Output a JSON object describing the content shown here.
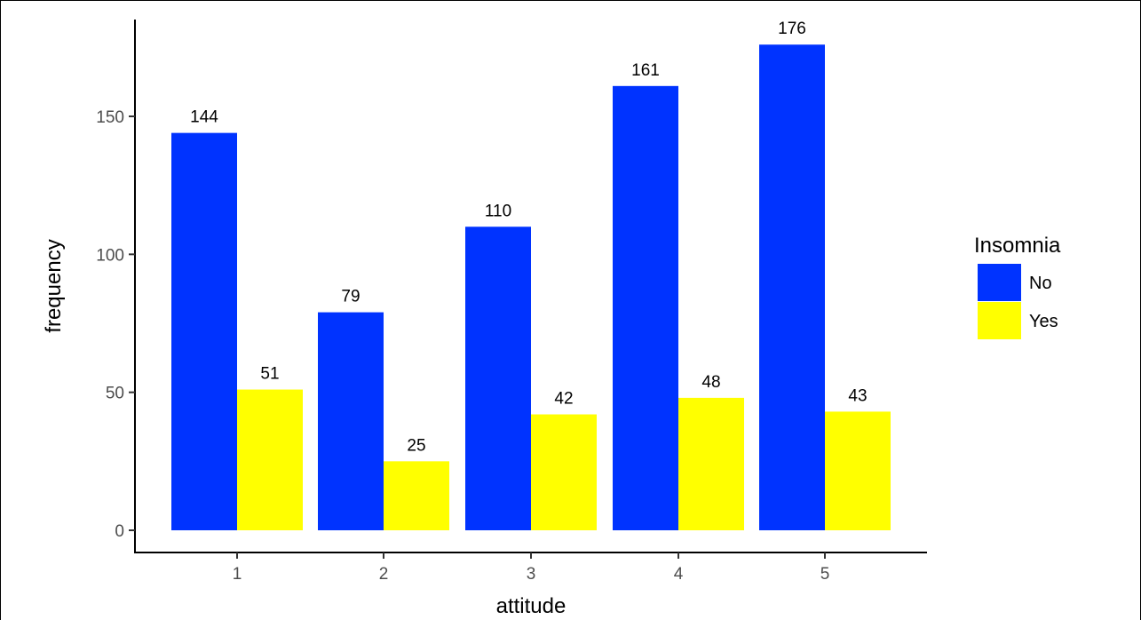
{
  "chart_data": {
    "type": "bar",
    "xlabel": "attitude",
    "ylabel": "frequency",
    "categories": [
      "1",
      "2",
      "3",
      "4",
      "5"
    ],
    "series": [
      {
        "name": "No",
        "color": "#0033ff",
        "values": [
          144,
          79,
          110,
          161,
          176
        ]
      },
      {
        "name": "Yes",
        "color": "#ffff00",
        "values": [
          51,
          25,
          42,
          48,
          43
        ]
      }
    ],
    "ylim": [
      0,
      180
    ],
    "yticks": [
      0,
      50,
      100,
      150
    ],
    "legend": {
      "title": "Insomnia",
      "position": "right"
    },
    "grid": false,
    "data_labels": true
  }
}
